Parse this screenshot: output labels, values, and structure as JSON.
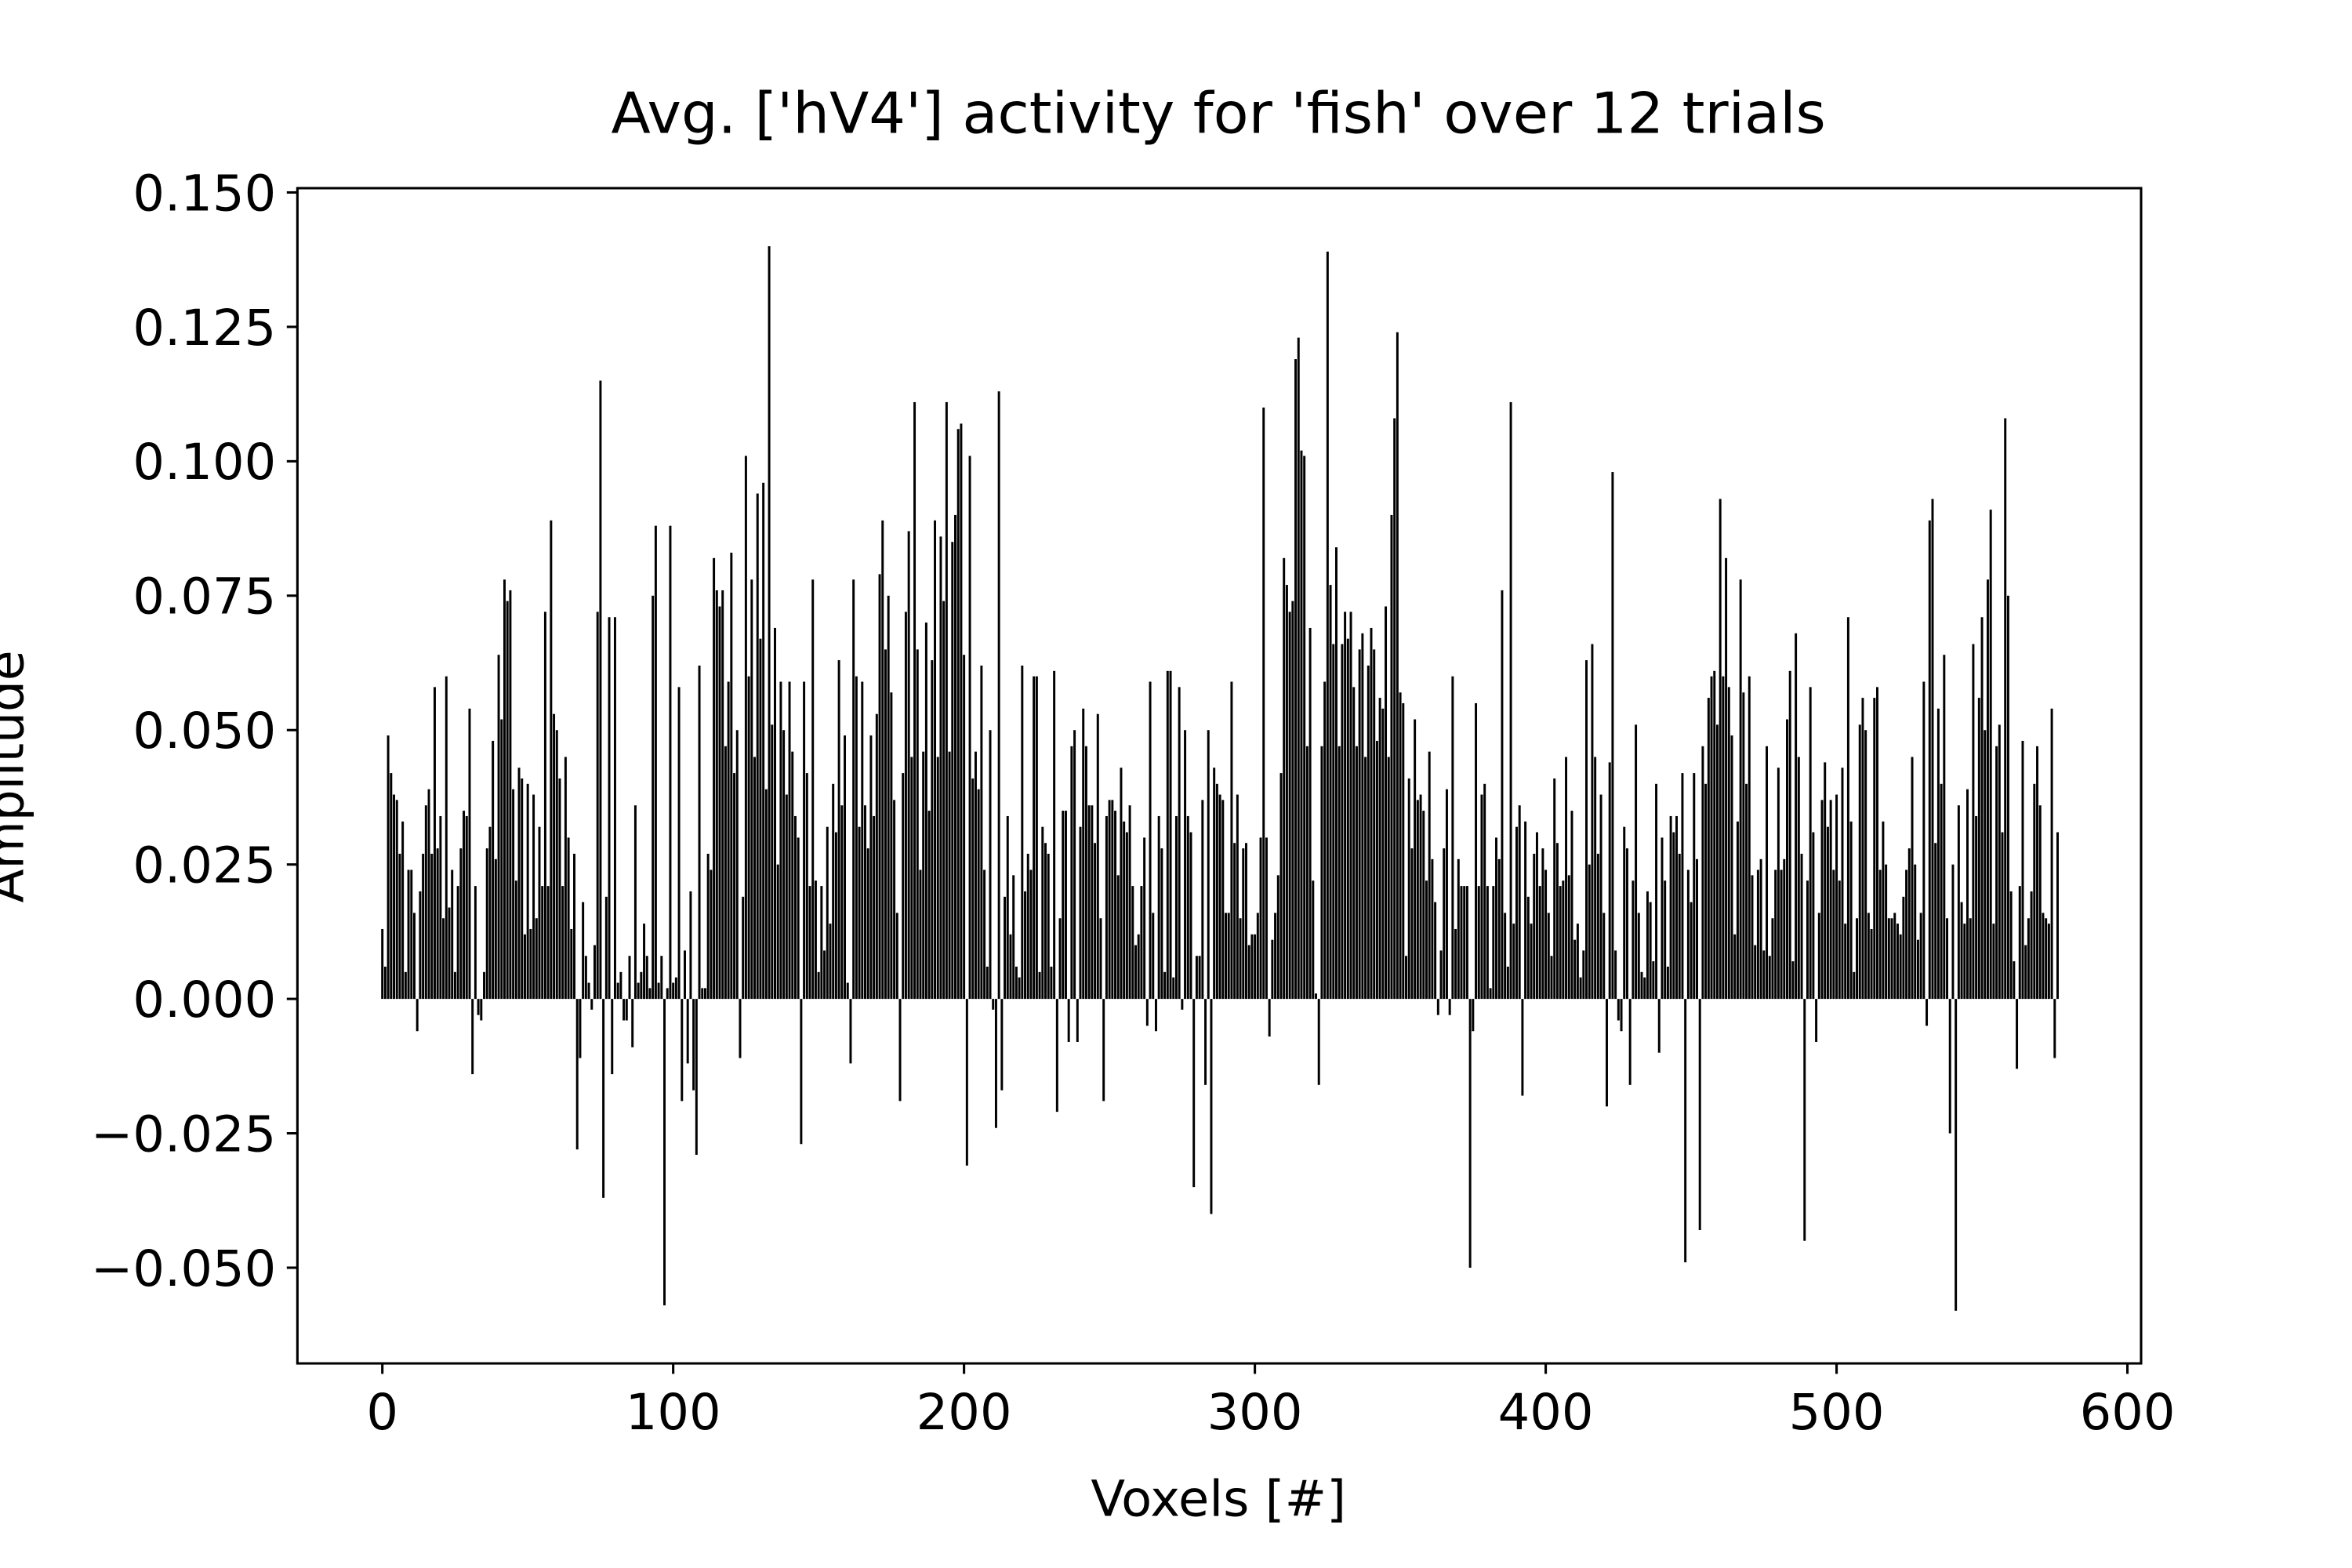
{
  "chart_data": {
    "type": "bar",
    "title": "Avg. ['hV4'] activity for 'fish' over 12 trials",
    "x_label": "Voxels [#]",
    "y_label": "Amplitude",
    "color": "#000000",
    "xlim": [
      -29.2,
      604.7
    ],
    "ylim": [
      -0.0678,
      0.1508
    ],
    "xticks": [
      0,
      100,
      200,
      300,
      400,
      500,
      600
    ],
    "yticks": [
      {
        "value": -0.05,
        "label": "−0.050"
      },
      {
        "value": -0.025,
        "label": "−0.025"
      },
      {
        "value": 0,
        "label": "0.000"
      },
      {
        "value": 0.025,
        "label": "0.025"
      },
      {
        "value": 0.05,
        "label": "0.050"
      },
      {
        "value": 0.075,
        "label": "0.075"
      },
      {
        "value": 0.1,
        "label": "0.100"
      },
      {
        "value": 0.125,
        "label": "0.125"
      },
      {
        "value": 0.15,
        "label": "0.150"
      }
    ],
    "x": [
      0,
      1,
      2,
      3,
      4,
      5,
      6,
      7,
      8,
      9,
      10,
      11,
      12,
      13,
      14,
      15,
      16,
      17,
      18,
      19,
      20,
      21,
      22,
      23,
      24,
      25,
      26,
      27,
      28,
      29,
      30,
      31,
      32,
      33,
      34,
      35,
      36,
      37,
      38,
      39,
      40,
      41,
      42,
      43,
      44,
      45,
      46,
      47,
      48,
      49,
      50,
      51,
      52,
      53,
      54,
      55,
      56,
      57,
      58,
      59,
      60,
      61,
      62,
      63,
      64,
      65,
      66,
      67,
      68,
      69,
      70,
      71,
      72,
      73,
      74,
      75,
      76,
      77,
      78,
      79,
      80,
      81,
      82,
      83,
      84,
      85,
      86,
      87,
      88,
      89,
      90,
      91,
      92,
      93,
      94,
      95,
      96,
      97,
      98,
      99,
      100,
      101,
      102,
      103,
      104,
      105,
      106,
      107,
      108,
      109,
      110,
      111,
      112,
      113,
      114,
      115,
      116,
      117,
      118,
      119,
      120,
      121,
      122,
      123,
      124,
      125,
      126,
      127,
      128,
      129,
      130,
      131,
      132,
      133,
      134,
      135,
      136,
      137,
      138,
      139,
      140,
      141,
      142,
      143,
      144,
      145,
      146,
      147,
      148,
      149,
      150,
      151,
      152,
      153,
      154,
      155,
      156,
      157,
      158,
      159,
      160,
      161,
      162,
      163,
      164,
      165,
      166,
      167,
      168,
      169,
      170,
      171,
      172,
      173,
      174,
      175,
      176,
      177,
      178,
      179,
      180,
      181,
      182,
      183,
      184,
      185,
      186,
      187,
      188,
      189,
      190,
      191,
      192,
      193,
      194,
      195,
      196,
      197,
      198,
      199,
      200,
      201,
      202,
      203,
      204,
      205,
      206,
      207,
      208,
      209,
      210,
      211,
      212,
      213,
      214,
      215,
      216,
      217,
      218,
      219,
      220,
      221,
      222,
      223,
      224,
      225,
      226,
      227,
      228,
      229,
      230,
      231,
      232,
      233,
      234,
      235,
      236,
      237,
      238,
      239,
      240,
      241,
      242,
      243,
      244,
      245,
      246,
      247,
      248,
      249,
      250,
      251,
      252,
      253,
      254,
      255,
      256,
      257,
      258,
      259,
      260,
      261,
      262,
      263,
      264,
      265,
      266,
      267,
      268,
      269,
      270,
      271,
      272,
      273,
      274,
      275,
      276,
      277,
      278,
      279,
      280,
      281,
      282,
      283,
      284,
      285,
      286,
      287,
      288,
      289,
      290,
      291,
      292,
      293,
      294,
      295,
      296,
      297,
      298,
      299,
      300,
      301,
      302,
      303,
      304,
      305,
      306,
      307,
      308,
      309,
      310,
      311,
      312,
      313,
      314,
      315,
      316,
      317,
      318,
      319,
      320,
      321,
      322,
      323,
      324,
      325,
      326,
      327,
      328,
      329,
      330,
      331,
      332,
      333,
      334,
      335,
      336,
      337,
      338,
      339,
      340,
      341,
      342,
      343,
      344,
      345,
      346,
      347,
      348,
      349,
      350,
      351,
      352,
      353,
      354,
      355,
      356,
      357,
      358,
      359,
      360,
      361,
      362,
      363,
      364,
      365,
      366,
      367,
      368,
      369,
      370,
      371,
      372,
      373,
      374,
      375,
      376,
      377,
      378,
      379,
      380,
      381,
      382,
      383,
      384,
      385,
      386,
      387,
      388,
      389,
      390,
      391,
      392,
      393,
      394,
      395,
      396,
      397,
      398,
      399,
      400,
      401,
      402,
      403,
      404,
      405,
      406,
      407,
      408,
      409,
      410,
      411,
      412,
      413,
      414,
      415,
      416,
      417,
      418,
      419,
      420,
      421,
      422,
      423,
      424,
      425,
      426,
      427,
      428,
      429,
      430,
      431,
      432,
      433,
      434,
      435,
      436,
      437,
      438,
      439,
      440,
      441,
      442,
      443,
      444,
      445,
      446,
      447,
      448,
      449,
      450,
      451,
      452,
      453,
      454,
      455,
      456,
      457,
      458,
      459,
      460,
      461,
      462,
      463,
      464,
      465,
      466,
      467,
      468,
      469,
      470,
      471,
      472,
      473,
      474,
      475,
      476,
      477,
      478,
      479,
      480,
      481,
      482,
      483,
      484,
      485,
      486,
      487,
      488,
      489,
      490,
      491,
      492,
      493,
      494,
      495,
      496,
      497,
      498,
      499,
      500,
      501,
      502,
      503,
      504,
      505,
      506,
      507,
      508,
      509,
      510,
      511,
      512,
      513,
      514,
      515,
      516,
      517,
      518,
      519,
      520,
      521,
      522,
      523,
      524,
      525,
      526,
      527,
      528,
      529,
      530,
      531,
      532,
      533,
      534,
      535,
      536,
      537,
      538,
      539,
      540,
      541,
      542,
      543,
      544,
      545,
      546,
      547,
      548,
      549,
      550,
      551,
      552,
      553,
      554,
      555,
      556,
      557,
      558,
      559,
      560,
      561,
      562,
      563,
      564,
      565,
      566,
      567,
      568,
      569,
      570,
      571,
      572,
      573,
      574,
      575,
      576
    ],
    "values": [
      0.013,
      0.006,
      0.049,
      0.042,
      0.038,
      0.037,
      0.027,
      0.033,
      0.005,
      0.024,
      0.024,
      0.016,
      -0.006,
      0.02,
      0.027,
      0.036,
      0.039,
      0.027,
      0.058,
      0.028,
      0.034,
      0.015,
      0.06,
      0.017,
      0.024,
      0.005,
      0.021,
      0.028,
      0.035,
      0.034,
      0.054,
      -0.014,
      0.021,
      -0.003,
      -0.004,
      0.005,
      0.028,
      0.032,
      0.048,
      0.026,
      0.064,
      0.052,
      0.078,
      0.074,
      0.076,
      0.039,
      0.022,
      0.043,
      0.041,
      0.012,
      0.04,
      0.013,
      0.038,
      0.015,
      0.032,
      0.021,
      0.072,
      0.021,
      0.089,
      0.053,
      0.05,
      0.041,
      0.021,
      0.045,
      0.03,
      0.013,
      0.027,
      -0.028,
      -0.011,
      0.018,
      0.008,
      0.003,
      -0.002,
      0.01,
      0.072,
      0.115,
      -0.037,
      0.019,
      0.071,
      -0.014,
      0.071,
      0.003,
      0.005,
      -0.004,
      -0.004,
      0.008,
      -0.009,
      0.036,
      0.003,
      0.005,
      0.014,
      0.008,
      0.002,
      0.075,
      0.088,
      0.003,
      0.008,
      -0.057,
      0.002,
      0.088,
      0.003,
      0.004,
      0.058,
      -0.019,
      0.009,
      -0.012,
      0.02,
      -0.017,
      -0.029,
      0.062,
      0.002,
      0.002,
      0.027,
      0.024,
      0.082,
      0.076,
      0.073,
      0.076,
      0.047,
      0.059,
      0.083,
      0.042,
      0.05,
      -0.011,
      0.019,
      0.101,
      0.06,
      0.078,
      0.045,
      0.094,
      0.067,
      0.096,
      0.039,
      0.14,
      0.051,
      0.069,
      0.025,
      0.059,
      0.05,
      0.038,
      0.059,
      0.046,
      0.034,
      0.03,
      -0.027,
      0.059,
      0.042,
      0.021,
      0.078,
      0.022,
      0.005,
      0.021,
      0.009,
      0.032,
      0.014,
      0.04,
      0.031,
      0.063,
      0.036,
      0.049,
      0.003,
      -0.012,
      0.078,
      0.06,
      0.032,
      0.059,
      0.036,
      0.028,
      0.049,
      0.034,
      0.053,
      0.079,
      0.089,
      0.065,
      0.075,
      0.057,
      0.037,
      0.016,
      -0.019,
      0.042,
      0.072,
      0.087,
      0.045,
      0.111,
      0.065,
      0.024,
      0.046,
      0.07,
      0.035,
      0.063,
      0.089,
      0.045,
      0.086,
      0.074,
      0.111,
      0.046,
      0.085,
      0.09,
      0.106,
      0.107,
      0.064,
      -0.031,
      0.101,
      0.041,
      0.046,
      0.039,
      0.062,
      0.024,
      0.006,
      0.05,
      -0.002,
      -0.024,
      0.113,
      -0.017,
      0.019,
      0.034,
      0.012,
      0.023,
      0.006,
      0.004,
      0.062,
      0.02,
      0.027,
      0.024,
      0.06,
      0.06,
      0.005,
      0.032,
      0.029,
      0.027,
      0.006,
      0.061,
      -0.021,
      0.015,
      0.035,
      0.035,
      -0.008,
      0.047,
      0.05,
      -0.008,
      0.032,
      0.054,
      0.047,
      0.036,
      0.036,
      0.029,
      0.053,
      0.015,
      -0.019,
      0.034,
      0.037,
      0.037,
      0.035,
      0.023,
      0.043,
      0.033,
      0.031,
      0.036,
      0.021,
      0.01,
      0.012,
      0.021,
      0.03,
      -0.005,
      0.059,
      0.016,
      -0.006,
      0.034,
      0.028,
      0.005,
      0.061,
      0.061,
      0.004,
      0.034,
      0.058,
      -0.002,
      0.05,
      0.034,
      0.031,
      -0.035,
      0.008,
      0.008,
      0.037,
      -0.016,
      0.05,
      -0.04,
      0.043,
      0.04,
      0.038,
      0.037,
      0.016,
      0.016,
      0.059,
      0.029,
      0.038,
      0.015,
      0.028,
      0.029,
      0.01,
      0.012,
      0.012,
      0.016,
      0.03,
      0.11,
      0.03,
      -0.007,
      0.011,
      0.016,
      0.023,
      0.042,
      0.082,
      0.077,
      0.072,
      0.074,
      0.119,
      0.123,
      0.102,
      0.101,
      0.047,
      0.069,
      0.022,
      0.001,
      -0.016,
      0.047,
      0.059,
      0.139,
      0.077,
      0.066,
      0.084,
      0.047,
      0.066,
      0.072,
      0.067,
      0.072,
      0.058,
      0.047,
      0.065,
      0.068,
      0.045,
      0.062,
      0.069,
      0.065,
      0.048,
      0.056,
      0.054,
      0.073,
      0.045,
      0.09,
      0.108,
      0.124,
      0.057,
      0.055,
      0.008,
      0.041,
      0.028,
      0.052,
      0.037,
      0.038,
      0.035,
      0.022,
      0.046,
      0.026,
      0.018,
      -0.003,
      0.009,
      0.028,
      0.039,
      -0.003,
      0.06,
      0.013,
      0.026,
      0.021,
      0.021,
      0.021,
      -0.05,
      -0.006,
      0.055,
      0.021,
      0.038,
      0.04,
      0.021,
      0.002,
      0.021,
      0.03,
      0.026,
      0.076,
      0.016,
      0.006,
      0.111,
      0.014,
      0.032,
      0.036,
      -0.018,
      0.033,
      0.019,
      0.014,
      0.027,
      0.031,
      0.021,
      0.028,
      0.024,
      0.016,
      0.008,
      0.041,
      0.029,
      0.021,
      0.022,
      0.045,
      0.023,
      0.035,
      0.011,
      0.014,
      0.004,
      0.009,
      0.063,
      0.025,
      0.066,
      0.045,
      0.027,
      0.038,
      0.016,
      -0.02,
      0.044,
      0.098,
      0.009,
      -0.004,
      -0.006,
      0.032,
      0.028,
      -0.016,
      0.022,
      0.051,
      0.016,
      0.005,
      0.004,
      0.02,
      0.018,
      0.007,
      0.04,
      -0.01,
      0.03,
      0.022,
      0.006,
      0.034,
      0.031,
      0.034,
      0.027,
      0.042,
      -0.049,
      0.024,
      0.018,
      0.042,
      0.026,
      -0.043,
      0.047,
      0.04,
      0.056,
      0.06,
      0.061,
      0.051,
      0.093,
      0.06,
      0.082,
      0.058,
      0.049,
      0.012,
      0.033,
      0.078,
      0.057,
      0.04,
      0.06,
      0.023,
      0.01,
      0.024,
      0.026,
      0.009,
      0.047,
      0.008,
      0.015,
      0.024,
      0.043,
      0.024,
      0.026,
      0.052,
      0.061,
      0.007,
      0.068,
      0.045,
      0.027,
      -0.045,
      0.022,
      0.058,
      0.031,
      -0.008,
      0.016,
      0.037,
      0.044,
      0.032,
      0.037,
      0.024,
      0.038,
      0.022,
      0.043,
      0.014,
      0.071,
      0.033,
      0.005,
      0.015,
      0.051,
      0.056,
      0.05,
      0.016,
      0.013,
      0.056,
      0.058,
      0.024,
      0.033,
      0.025,
      0.015,
      0.015,
      0.016,
      0.014,
      0.012,
      0.019,
      0.024,
      0.028,
      0.045,
      0.025,
      0.011,
      0.016,
      0.059,
      -0.005,
      0.089,
      0.093,
      0.029,
      0.054,
      0.04,
      0.064,
      0.015,
      -0.025,
      0.025,
      -0.058,
      0.036,
      0.018,
      0.014,
      0.039,
      0.015,
      0.066,
      0.034,
      0.056,
      0.071,
      0.05,
      0.078,
      0.091,
      0.014,
      0.047,
      0.051,
      0.031,
      0.108,
      0.075,
      0.02,
      0.007,
      -0.013,
      0.021,
      0.048,
      0.01,
      0.015,
      0.02,
      0.04,
      0.047,
      0.036,
      0.016,
      0.015,
      0.014,
      0.054,
      -0.011,
      0.031
    ]
  }
}
